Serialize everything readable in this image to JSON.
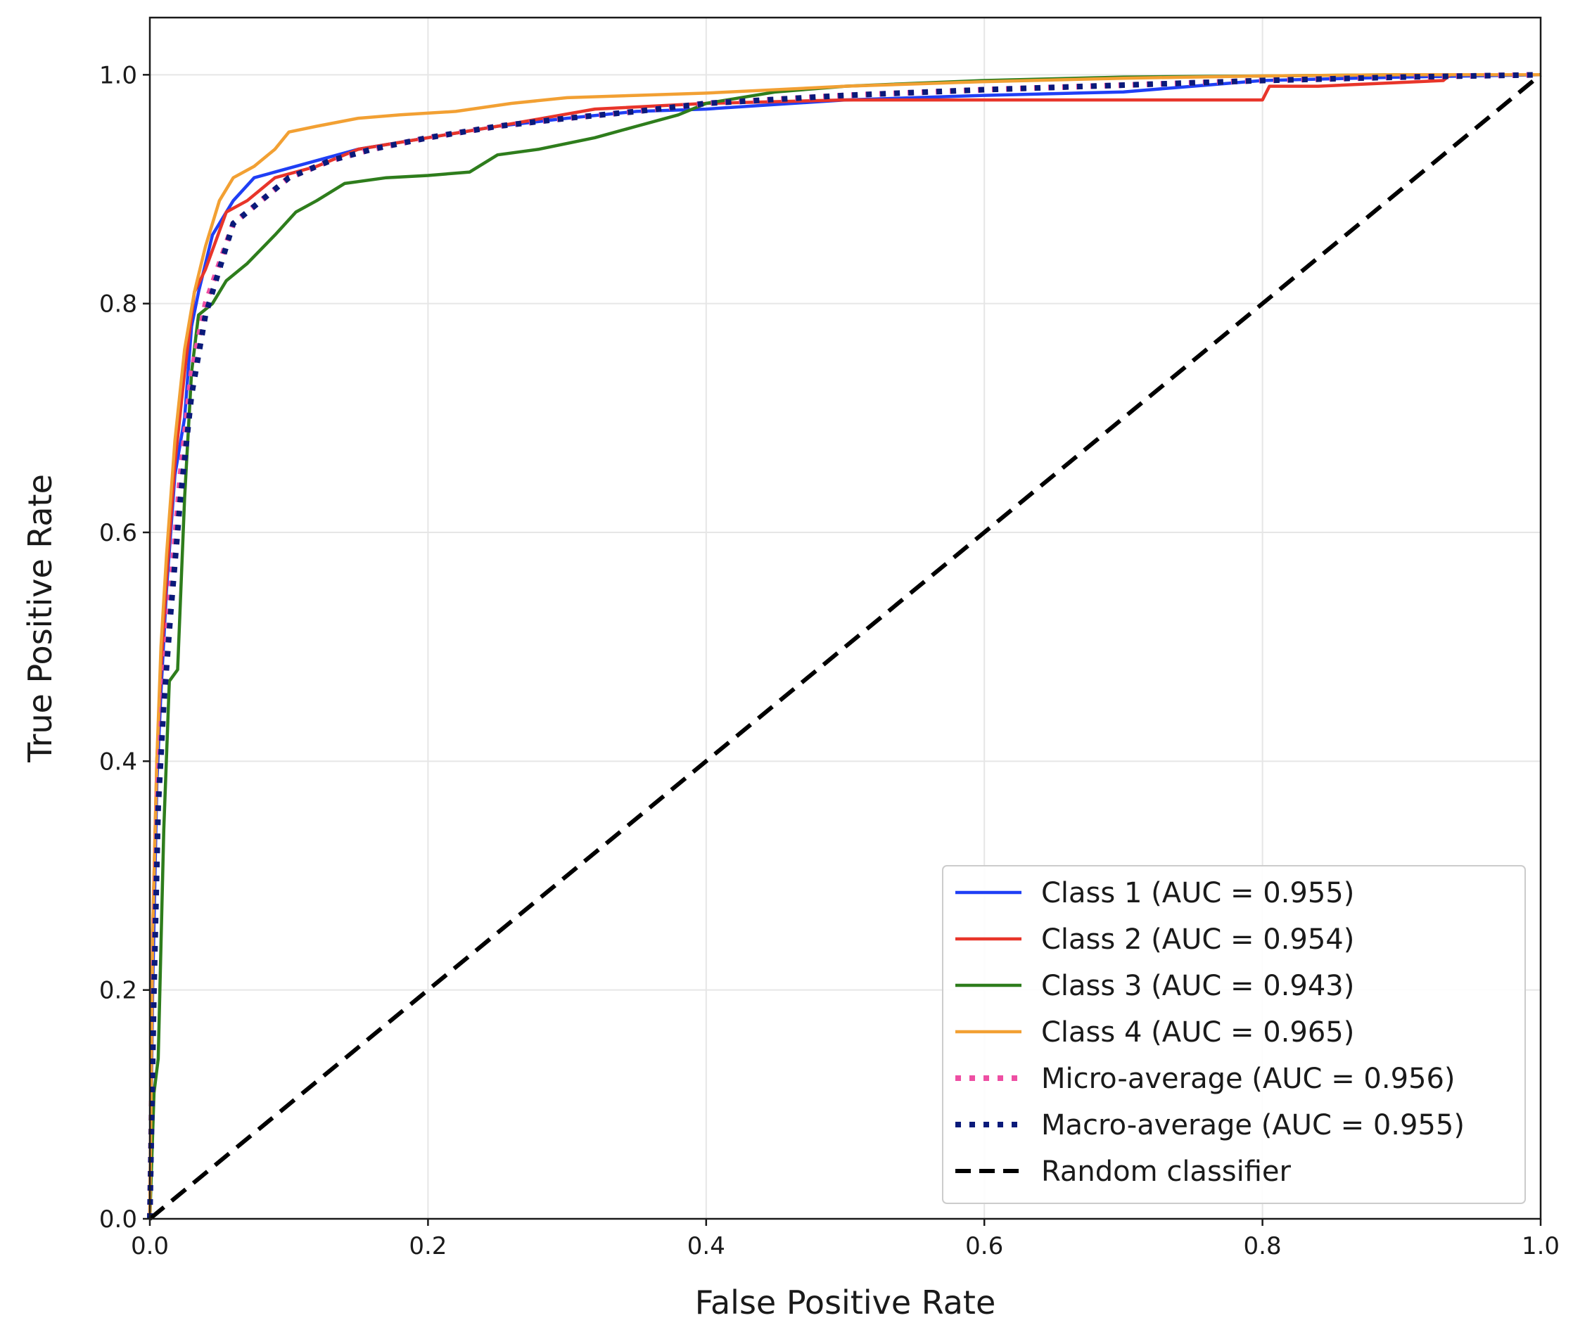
{
  "chart_data": {
    "type": "line",
    "title": "",
    "xlabel": "False Positive Rate",
    "ylabel": "True Positive Rate",
    "xlim": [
      0.0,
      1.0
    ],
    "ylim": [
      0.0,
      1.05
    ],
    "xticks": [
      0.0,
      0.2,
      0.4,
      0.6,
      0.8,
      1.0
    ],
    "yticks": [
      0.0,
      0.2,
      0.4,
      0.6,
      0.8,
      1.0
    ],
    "xtick_labels": [
      "0.0",
      "0.2",
      "0.4",
      "0.6",
      "0.8",
      "1.0"
    ],
    "ytick_labels": [
      "0.0",
      "0.2",
      "0.4",
      "0.6",
      "0.8",
      "1.0"
    ],
    "grid": true,
    "legend_position": "bottom-right",
    "series": [
      {
        "name": "Class 1 (AUC = 0.955)",
        "color": "#1f3ff5",
        "style": "solid",
        "x": [
          0.0,
          0.002,
          0.005,
          0.008,
          0.012,
          0.018,
          0.025,
          0.03,
          0.035,
          0.045,
          0.06,
          0.075,
          0.09,
          0.12,
          0.15,
          0.2,
          0.25,
          0.3,
          0.35,
          0.4,
          0.5,
          0.6,
          0.7,
          0.75,
          0.8,
          0.9,
          1.0
        ],
        "y": [
          0.0,
          0.2,
          0.38,
          0.46,
          0.55,
          0.65,
          0.7,
          0.78,
          0.81,
          0.86,
          0.89,
          0.91,
          0.915,
          0.925,
          0.935,
          0.945,
          0.955,
          0.962,
          0.968,
          0.97,
          0.978,
          0.982,
          0.985,
          0.99,
          0.995,
          0.998,
          1.0
        ]
      },
      {
        "name": "Class 2 (AUC = 0.954)",
        "color": "#e8352a",
        "style": "solid",
        "x": [
          0.0,
          0.002,
          0.005,
          0.008,
          0.012,
          0.018,
          0.025,
          0.032,
          0.04,
          0.055,
          0.07,
          0.09,
          0.12,
          0.15,
          0.2,
          0.25,
          0.32,
          0.4,
          0.5,
          0.6,
          0.7,
          0.8,
          0.805,
          0.84,
          0.93,
          0.935,
          1.0
        ],
        "y": [
          0.0,
          0.25,
          0.4,
          0.48,
          0.56,
          0.66,
          0.74,
          0.81,
          0.83,
          0.88,
          0.89,
          0.91,
          0.92,
          0.935,
          0.945,
          0.955,
          0.97,
          0.975,
          0.978,
          0.978,
          0.978,
          0.978,
          0.99,
          0.99,
          0.995,
          1.0,
          1.0
        ]
      },
      {
        "name": "Class 3 (AUC = 0.943)",
        "color": "#2e7d1c",
        "style": "solid",
        "x": [
          0.0,
          0.003,
          0.006,
          0.01,
          0.014,
          0.02,
          0.025,
          0.03,
          0.035,
          0.045,
          0.055,
          0.07,
          0.09,
          0.105,
          0.12,
          0.14,
          0.17,
          0.2,
          0.23,
          0.25,
          0.28,
          0.32,
          0.35,
          0.38,
          0.4,
          0.45,
          0.5,
          0.6,
          0.7,
          0.8,
          0.9,
          1.0
        ],
        "y": [
          0.0,
          0.11,
          0.14,
          0.34,
          0.47,
          0.48,
          0.63,
          0.74,
          0.79,
          0.8,
          0.82,
          0.835,
          0.86,
          0.88,
          0.89,
          0.905,
          0.91,
          0.912,
          0.915,
          0.93,
          0.935,
          0.945,
          0.955,
          0.965,
          0.975,
          0.985,
          0.99,
          0.995,
          0.998,
          0.999,
          1.0,
          1.0
        ]
      },
      {
        "name": "Class 4 (AUC = 0.965)",
        "color": "#f2a033",
        "style": "solid",
        "x": [
          0.0,
          0.002,
          0.005,
          0.008,
          0.012,
          0.018,
          0.025,
          0.032,
          0.04,
          0.05,
          0.06,
          0.075,
          0.09,
          0.1,
          0.12,
          0.15,
          0.18,
          0.22,
          0.26,
          0.3,
          0.35,
          0.4,
          0.5,
          0.6,
          0.7,
          0.8,
          0.9,
          1.0
        ],
        "y": [
          0.0,
          0.25,
          0.4,
          0.5,
          0.58,
          0.68,
          0.76,
          0.81,
          0.85,
          0.89,
          0.91,
          0.92,
          0.935,
          0.95,
          0.955,
          0.962,
          0.965,
          0.968,
          0.975,
          0.98,
          0.982,
          0.984,
          0.99,
          0.994,
          0.997,
          0.999,
          1.0,
          1.0
        ]
      },
      {
        "name": "Micro-average (AUC = 0.956)",
        "color": "#ee4fa3",
        "style": "dotted",
        "x": [
          0.0,
          0.003,
          0.006,
          0.01,
          0.015,
          0.022,
          0.03,
          0.04,
          0.06,
          0.08,
          0.1,
          0.13,
          0.16,
          0.2,
          0.25,
          0.3,
          0.35,
          0.4,
          0.5,
          0.6,
          0.7,
          0.8,
          0.9,
          1.0
        ],
        "y": [
          0.0,
          0.22,
          0.38,
          0.47,
          0.55,
          0.65,
          0.74,
          0.8,
          0.87,
          0.89,
          0.91,
          0.925,
          0.935,
          0.945,
          0.955,
          0.962,
          0.968,
          0.975,
          0.982,
          0.987,
          0.991,
          0.995,
          0.998,
          1.0
        ]
      },
      {
        "name": "Macro-average (AUC = 0.955)",
        "color": "#0a1a7a",
        "style": "dotted",
        "x": [
          0.0,
          0.003,
          0.006,
          0.01,
          0.015,
          0.022,
          0.03,
          0.04,
          0.06,
          0.08,
          0.1,
          0.13,
          0.16,
          0.2,
          0.25,
          0.3,
          0.35,
          0.4,
          0.5,
          0.6,
          0.7,
          0.8,
          0.9,
          1.0
        ],
        "y": [
          0.0,
          0.2,
          0.36,
          0.45,
          0.53,
          0.63,
          0.72,
          0.79,
          0.87,
          0.89,
          0.91,
          0.925,
          0.935,
          0.945,
          0.955,
          0.962,
          0.968,
          0.975,
          0.982,
          0.987,
          0.991,
          0.995,
          0.998,
          1.0
        ]
      },
      {
        "name": "Random classifier",
        "color": "#000000",
        "style": "dashed",
        "x": [
          0.0,
          1.0
        ],
        "y": [
          0.0,
          1.0
        ]
      }
    ]
  }
}
